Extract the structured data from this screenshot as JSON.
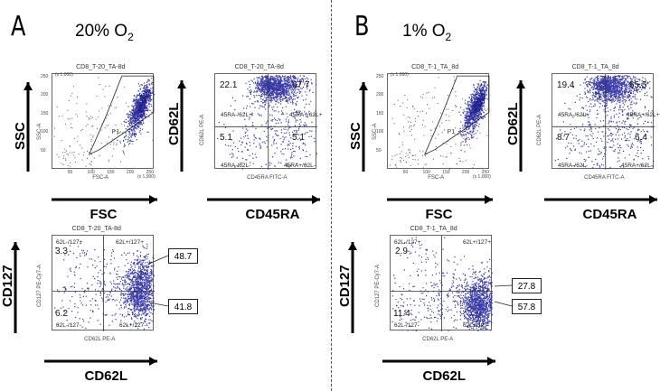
{
  "panels": [
    {
      "letter": "A",
      "condition": "20% O",
      "condition_sub": "2",
      "scatter": {
        "title": "CD8_T-20_TA-8d",
        "x_axis": "FSC-A",
        "y_axis": "SSC-A",
        "x_scale": "(x 1,000)",
        "y_scale": "(x 1,000)",
        "gate": "P1",
        "x_ticks": [
          "50",
          "100",
          "150",
          "200",
          "250"
        ],
        "y_ticks": [
          "50",
          "100",
          "150",
          "200",
          "250"
        ],
        "x_label_big": "FSC",
        "y_label_big": "SSC"
      },
      "cd62l_cd45ra": {
        "title": "CD8_T-20_TA-8d",
        "x_axis": "CD45RA FITC-A",
        "y_axis": "CD62L PE-A",
        "quadrant_labels": [
          "45RA-/62L+",
          "45RA+/62L+",
          "45RA-/62L-",
          "45RA+/62L-"
        ],
        "values": {
          "ul": "22.1",
          "ur": "67.7",
          "ll": "5.1",
          "lr": "5.1"
        },
        "x_label_big": "CD45RA",
        "y_label_big": "CD62L"
      },
      "cd127_cd62l": {
        "title": "CD8_T-20_TA-8d",
        "x_axis": "CD62L PE-A",
        "y_axis": "CD127 PE-Cy7-A",
        "quadrant_labels": [
          "62L-/127+",
          "62L+/127+",
          "62L-/127-",
          "62L+/127-"
        ],
        "values": {
          "ul": "3.3",
          "ur": "48.7",
          "ll": "6.2",
          "lr": "41.8"
        },
        "x_label_big": "CD62L",
        "y_label_big": "CD127"
      }
    },
    {
      "letter": "B",
      "condition": "1% O",
      "condition_sub": "2",
      "scatter": {
        "title": "CD8_T-1_TA_8d",
        "x_axis": "FSC-A",
        "y_axis": "SSC-A",
        "x_scale": "(x 1,000)",
        "y_scale": "(x 1,000)",
        "gate": "P1",
        "x_ticks": [
          "50",
          "100",
          "150",
          "200",
          "250"
        ],
        "y_ticks": [
          "50",
          "100",
          "150",
          "200",
          "250"
        ],
        "x_label_big": "FSC",
        "y_label_big": "SSC"
      },
      "cd62l_cd45ra": {
        "title": "CD8_T-1_TA_8d",
        "x_axis": "CD45RA FITC-A",
        "y_axis": "CD62L PE-A",
        "quadrant_labels": [
          "45RA-/62L+",
          "45RA+/62L+",
          "45RA-/62L-",
          "45RA+/62L-"
        ],
        "values": {
          "ul": "19.4",
          "ur": "65.5",
          "ll": "8.7",
          "lr": "6.4"
        },
        "x_label_big": "CD45RA",
        "y_label_big": "CD62L"
      },
      "cd127_cd62l": {
        "title": "CD8_T-1_TA_8d",
        "x_axis": "CD62L PE-A",
        "y_axis": "CD127 PE-Cy7-A",
        "quadrant_labels": [
          "62L-/127+",
          "62L+/127+",
          "62L-/127-",
          "62L+/127-"
        ],
        "values": {
          "ul": "2.9",
          "ur": "27.8",
          "ll": "11.4",
          "lr": "57.8"
        },
        "x_label_big": "CD62L",
        "y_label_big": "CD127"
      }
    }
  ],
  "colors": {
    "dots": "#3a3aa8",
    "dense": "#20208a",
    "gray_dots": "#555555"
  }
}
